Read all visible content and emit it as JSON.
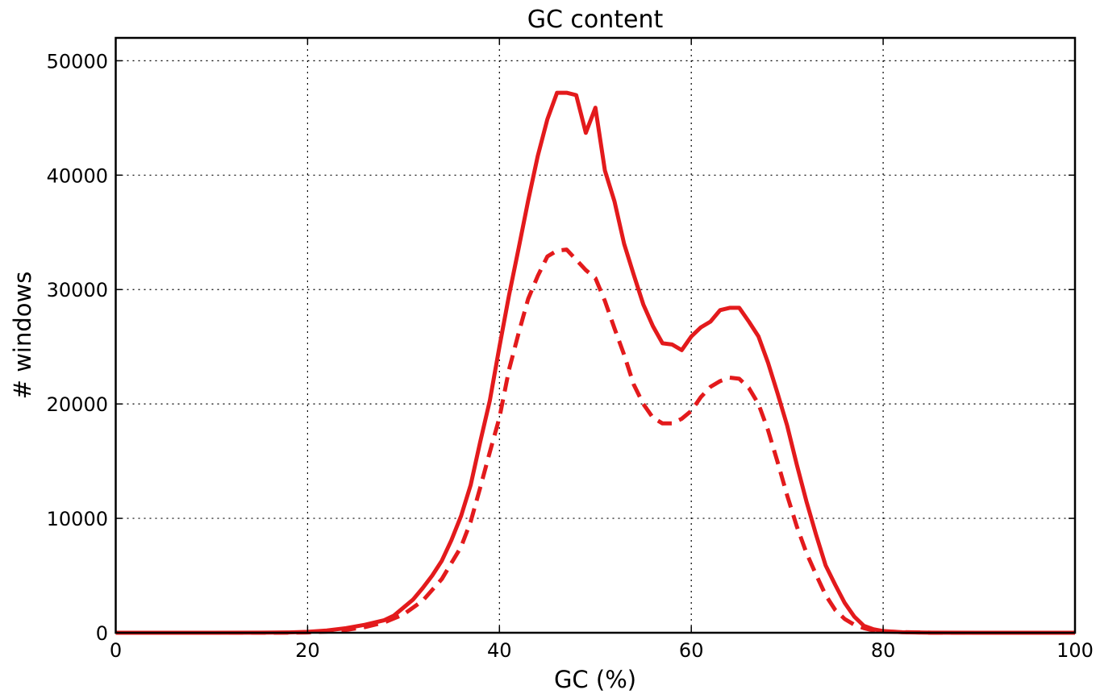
{
  "colors": {
    "series": "#e31a1c",
    "axis": "#000000",
    "background": "#ffffff"
  },
  "chart_data": {
    "type": "line",
    "title": "GC content",
    "xlabel": "GC (%)",
    "ylabel": "# windows",
    "xlim": [
      0,
      100
    ],
    "ylim": [
      0,
      52000
    ],
    "xticks": [
      0,
      20,
      40,
      60,
      80,
      100
    ],
    "yticks": [
      0,
      10000,
      20000,
      30000,
      40000,
      50000
    ],
    "grid": true,
    "legend": "none",
    "series": [
      {
        "style": "solid",
        "x": [
          0,
          5,
          10,
          15,
          18,
          20,
          22,
          24,
          26,
          28,
          29,
          30,
          31,
          32,
          33,
          34,
          35,
          36,
          37,
          38,
          39,
          40,
          41,
          42,
          43,
          44,
          45,
          46,
          47,
          48,
          49,
          50,
          51,
          52,
          53,
          54,
          55,
          56,
          57,
          58,
          59,
          60,
          61,
          62,
          63,
          64,
          65,
          66,
          67,
          68,
          69,
          70,
          71,
          72,
          73,
          74,
          75,
          76,
          77,
          78,
          79,
          80,
          82,
          85,
          90,
          95,
          100
        ],
        "y": [
          0,
          0,
          0,
          10,
          30,
          80,
          200,
          400,
          700,
          1100,
          1500,
          2200,
          2900,
          3900,
          5000,
          6300,
          8100,
          10200,
          12900,
          16700,
          20300,
          25000,
          29500,
          33600,
          37800,
          41700,
          44900,
          47200,
          47200,
          47000,
          43700,
          45900,
          40400,
          37700,
          34000,
          31300,
          28700,
          26800,
          25300,
          25200,
          24700,
          25900,
          26700,
          27200,
          28200,
          28400,
          28400,
          27200,
          25900,
          23600,
          20900,
          18100,
          14700,
          11500,
          8600,
          5900,
          4200,
          2600,
          1400,
          600,
          300,
          150,
          40,
          10,
          0,
          0,
          0
        ]
      },
      {
        "style": "dashed",
        "x": [
          0,
          5,
          10,
          15,
          18,
          20,
          22,
          24,
          26,
          28,
          30,
          32,
          34,
          36,
          37,
          38,
          39,
          40,
          41,
          42,
          43,
          44,
          45,
          46,
          47,
          48,
          49,
          50,
          51,
          52,
          53,
          54,
          55,
          56,
          57,
          58,
          59,
          60,
          61,
          62,
          63,
          64,
          65,
          66,
          67,
          68,
          69,
          70,
          71,
          72,
          73,
          74,
          75,
          76,
          77,
          78,
          79,
          80,
          85,
          100
        ],
        "y": [
          0,
          0,
          0,
          0,
          10,
          30,
          100,
          250,
          500,
          900,
          1600,
          2800,
          4700,
          7500,
          9700,
          12700,
          15800,
          18800,
          23000,
          26200,
          29200,
          31200,
          32900,
          33400,
          33500,
          32600,
          31700,
          31000,
          29000,
          26600,
          24300,
          21700,
          20000,
          18800,
          18300,
          18300,
          18700,
          19400,
          20600,
          21500,
          22000,
          22300,
          22200,
          21400,
          20000,
          17700,
          14900,
          12000,
          9300,
          7000,
          5100,
          3300,
          2000,
          1200,
          700,
          400,
          200,
          100,
          0,
          0
        ]
      }
    ]
  }
}
